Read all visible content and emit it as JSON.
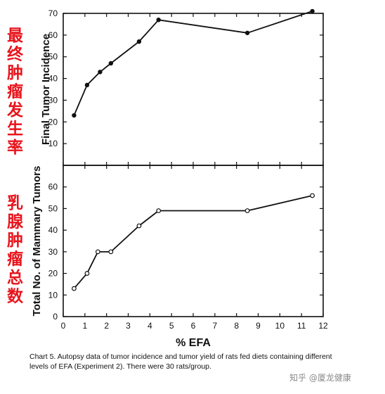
{
  "chart_data": [
    {
      "type": "line",
      "xlabel": "% EFA",
      "ylabel": "Final Tumor Incidence",
      "annotation": "最终肿瘤发生率",
      "xlim": [
        0,
        12
      ],
      "ylim": [
        0,
        70
      ],
      "xticks": [
        0,
        1,
        2,
        3,
        4,
        5,
        6,
        7,
        8,
        9,
        10,
        11,
        12
      ],
      "yticks": [
        10,
        20,
        30,
        40,
        50,
        60,
        70
      ],
      "markers": "none",
      "series": [
        {
          "x": [
            0.5,
            1.1,
            1.7,
            2.2,
            3.5,
            4.4,
            8.5,
            11.5
          ],
          "y": [
            23,
            37,
            43,
            47,
            57,
            67,
            61,
            71
          ]
        }
      ]
    },
    {
      "type": "line",
      "xlabel": "% EFA",
      "ylabel": "Total No. of Mammary Tumors",
      "annotation": "乳腺肿瘤总数",
      "xlim": [
        0,
        12
      ],
      "ylim": [
        0,
        70
      ],
      "xticks": [
        0,
        1,
        2,
        3,
        4,
        5,
        6,
        7,
        8,
        9,
        10,
        11,
        12
      ],
      "yticks": [
        0,
        10,
        20,
        30,
        40,
        50,
        60
      ],
      "markers": "open-circle",
      "series": [
        {
          "x": [
            0.5,
            1.1,
            1.6,
            2.2,
            3.5,
            4.4,
            8.5,
            11.5
          ],
          "y": [
            13,
            20,
            30,
            30,
            42,
            49,
            49,
            56
          ]
        }
      ]
    }
  ],
  "caption": "Chart 5.  Autopsy data of tumor incidence and tumor yield of rats fed diets containing different levels of EFA (Experiment 2). There were 30 rats/group.",
  "watermark": "知乎 @厦龙健康"
}
